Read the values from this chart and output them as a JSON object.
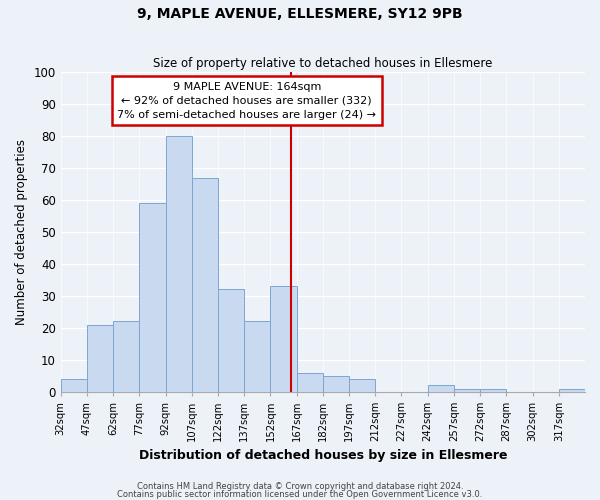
{
  "title1": "9, MAPLE AVENUE, ELLESMERE, SY12 9PB",
  "title2": "Size of property relative to detached houses in Ellesmere",
  "xlabel": "Distribution of detached houses by size in Ellesmere",
  "ylabel": "Number of detached properties",
  "bins": [
    32,
    47,
    62,
    77,
    92,
    107,
    122,
    137,
    152,
    167,
    182,
    197,
    212,
    227,
    242,
    257,
    272,
    287,
    302,
    317,
    332
  ],
  "counts": [
    4,
    21,
    22,
    59,
    80,
    67,
    32,
    22,
    33,
    6,
    5,
    4,
    0,
    0,
    2,
    1,
    1,
    0,
    0,
    1
  ],
  "bar_facecolor": "#c9d9ef",
  "bar_edgecolor": "#7ba7d4",
  "property_size": 164,
  "vline_color": "#cc0000",
  "annotation_line1": "9 MAPLE AVENUE: 164sqm",
  "annotation_line2": "← 92% of detached houses are smaller (332)",
  "annotation_line3": "7% of semi-detached houses are larger (24) →",
  "annotation_box_edgecolor": "#cc0000",
  "annotation_box_facecolor": "#ffffff",
  "ylim": [
    0,
    100
  ],
  "yticks": [
    0,
    10,
    20,
    30,
    40,
    50,
    60,
    70,
    80,
    90,
    100
  ],
  "bg_color": "#edf1f8",
  "grid_color": "#ffffff",
  "footer1": "Contains HM Land Registry data © Crown copyright and database right 2024.",
  "footer2": "Contains public sector information licensed under the Open Government Licence v3.0."
}
